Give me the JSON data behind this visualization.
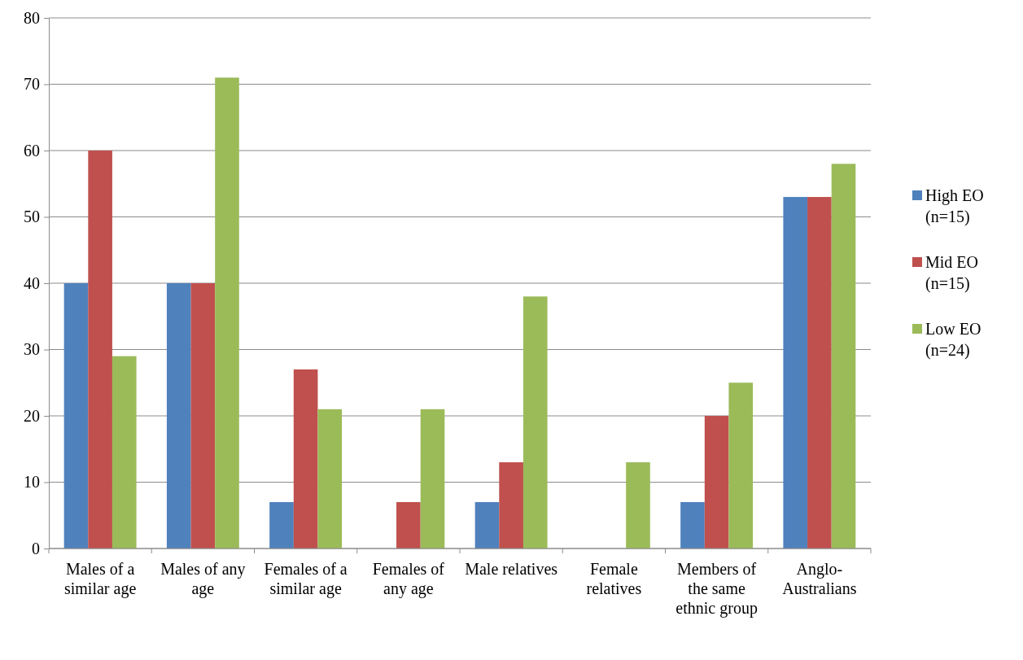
{
  "chart_data": {
    "type": "bar",
    "categories": [
      "Males of a similar age",
      "Males of any age",
      "Females of a similar age",
      "Females of any age",
      "Male relatives",
      "Female relatives",
      "Members of the same ethnic group",
      "Anglo-Australians"
    ],
    "series": [
      {
        "name": "High EO (n=15)",
        "color": "#4f81bd",
        "values": [
          40,
          40,
          7,
          0,
          7,
          0,
          7,
          53
        ]
      },
      {
        "name": "Mid EO (n=15)",
        "color": "#c0504d",
        "values": [
          60,
          40,
          27,
          7,
          13,
          0,
          20,
          53
        ]
      },
      {
        "name": "Low EO (n=24)",
        "color": "#9bbb59",
        "values": [
          29,
          71,
          21,
          21,
          38,
          13,
          25,
          58
        ]
      }
    ],
    "ylim": [
      0,
      80
    ],
    "yticks": [
      0,
      10,
      20,
      30,
      40,
      50,
      60,
      70,
      80
    ],
    "grid": "y",
    "legend": "right"
  }
}
